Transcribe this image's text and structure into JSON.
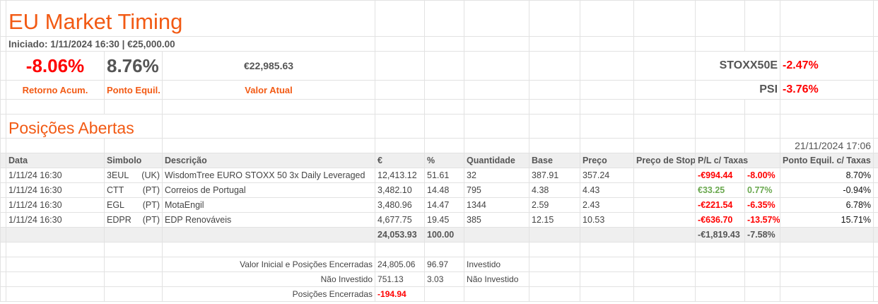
{
  "title": "EU Market Timing",
  "started": "Iniciado: 1/11/2024 16:30 |  €25,000.00",
  "summary": {
    "return_value": "-8.06%",
    "return_label": "Retorno Acum.",
    "breakeven_value": "8.76%",
    "breakeven_label": "Ponto Equil.",
    "current_value": "€22,985.63",
    "current_label": "Valor Atual"
  },
  "indices": [
    {
      "name": "STOXX50E",
      "value": "-2.47%"
    },
    {
      "name": "PSI",
      "value": "-3.76%"
    }
  ],
  "section_title": "Posições Abertas",
  "timestamp": "21/11/2024 17:06",
  "columns": [
    "Data",
    "Simbolo",
    "Descrição",
    "€",
    "%",
    "Quantidade",
    "Base",
    "Preço",
    "Preço de Stop",
    "P/L c/ Taxas",
    "Ponto Equil. c/ Taxas"
  ],
  "rows": [
    {
      "date": "1/11/24 16:30",
      "symbol": "3EUL",
      "market": "(UK)",
      "desc": "WisdomTree EURO STOXX 50 3x Daily Leveraged",
      "eur": "12,413.12",
      "pct": "51.61",
      "qty": "32",
      "base": "387.91",
      "price": "357.24",
      "stop": "",
      "pl": "-€994.44",
      "plpct": "-8.00%",
      "be": "8.70%",
      "positive": false
    },
    {
      "date": "1/11/24 16:30",
      "symbol": "CTT",
      "market": "(PT)",
      "desc": "Correios de Portugal",
      "eur": "3,482.10",
      "pct": "14.48",
      "qty": "795",
      "base": "4.38",
      "price": "4.43",
      "stop": "",
      "pl": "€33.25",
      "plpct": "0.77%",
      "be": "-0.94%",
      "positive": true
    },
    {
      "date": "1/11/24 16:30",
      "symbol": "EGL",
      "market": "(PT)",
      "desc": "MotaEngil",
      "eur": "3,480.96",
      "pct": "14.47",
      "qty": "1344",
      "base": "2.59",
      "price": "2.43",
      "stop": "",
      "pl": "-€221.54",
      "plpct": "-6.35%",
      "be": "6.78%",
      "positive": false
    },
    {
      "date": "1/11/24 16:30",
      "symbol": "EDPR",
      "market": "(PT)",
      "desc": "EDP Renováveis",
      "eur": "4,677.75",
      "pct": "19.45",
      "qty": "385",
      "base": "12.15",
      "price": "10.53",
      "stop": "",
      "pl": "-€636.70",
      "plpct": "-13.57%",
      "be": "15.71%",
      "positive": false
    }
  ],
  "totals": {
    "eur": "24,053.93",
    "pct": "100.00",
    "pl": "-€1,819.43",
    "plpct": "-7.58%"
  },
  "footer": [
    {
      "label": "Valor Inicial e Posições Encerradas",
      "value": "24,805.06",
      "pct": "96.97",
      "note": "Investido"
    },
    {
      "label": "Não Investido",
      "value": "751.13",
      "pct": "3.03",
      "note": "Não Investido"
    },
    {
      "label": "Posições Encerradas",
      "value": "-194.94",
      "pct": "",
      "note": ""
    }
  ],
  "colors": {
    "accent": "#f25a14",
    "negative": "#ff0000",
    "positive": "#6aa84f"
  }
}
